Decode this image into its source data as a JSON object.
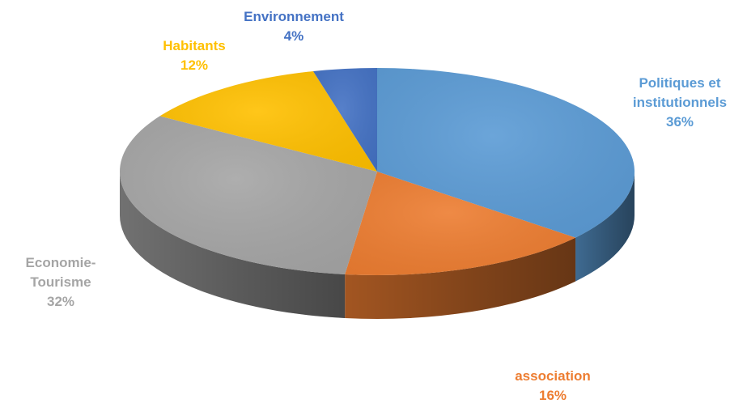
{
  "chart_data": {
    "type": "pie",
    "style": "3d",
    "title": "",
    "legend": "none",
    "slices": [
      {
        "label_lines": [
          "Politiques et",
          "institutionnels"
        ],
        "value": 36,
        "pct_text": "36%",
        "color": "#5B9BD5"
      },
      {
        "label_lines": [
          "association"
        ],
        "value": 16,
        "pct_text": "16%",
        "color": "#ED7D31"
      },
      {
        "label_lines": [
          "Economie-",
          "Tourisme"
        ],
        "value": 32,
        "pct_text": "32%",
        "color": "#A5A5A5"
      },
      {
        "label_lines": [
          "Habitants"
        ],
        "value": 12,
        "pct_text": "12%",
        "color": "#FFC000"
      },
      {
        "label_lines": [
          "Environnement"
        ],
        "value": 4,
        "pct_text": "4%",
        "color": "#4472C4"
      }
    ]
  }
}
